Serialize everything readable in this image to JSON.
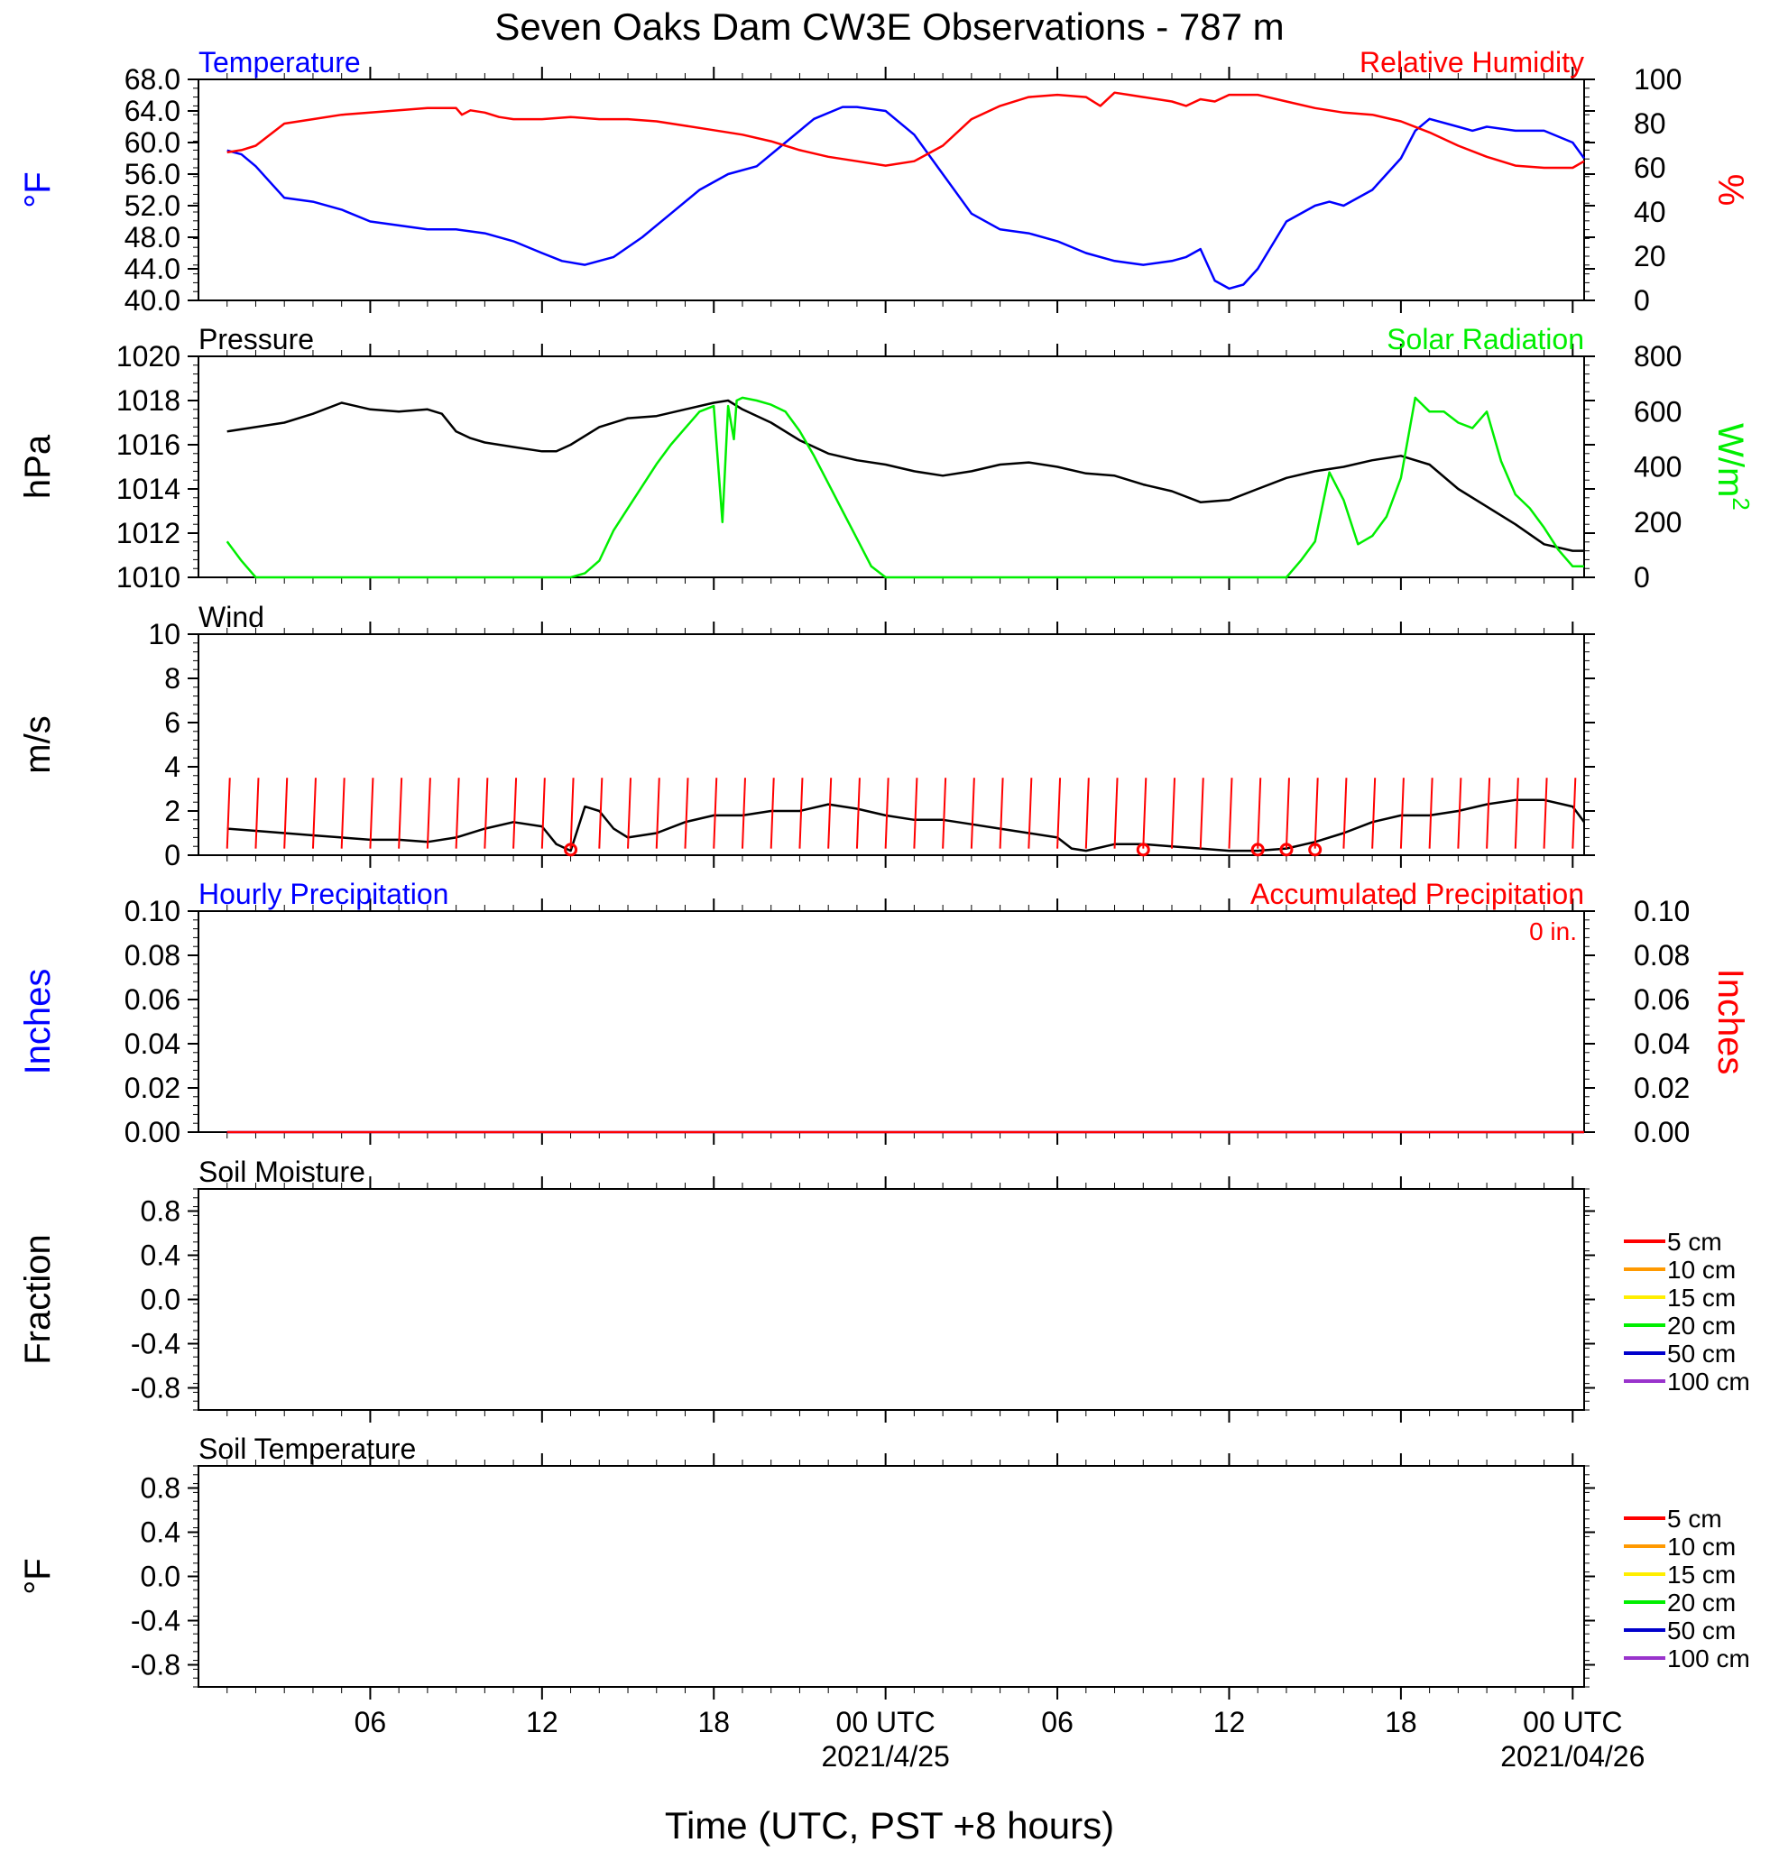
{
  "title": "Seven Oaks Dam CW3E Observations - 787 m",
  "xlabel": "Time (UTC, PST +8 hours)",
  "x_ticks": [
    {
      "t": 5,
      "label": "06",
      "date": ""
    },
    {
      "t": 11,
      "label": "12",
      "date": ""
    },
    {
      "t": 17,
      "label": "18",
      "date": ""
    },
    {
      "t": 23,
      "label": "00 UTC",
      "date": "2021/4/25"
    },
    {
      "t": 29,
      "label": "06",
      "date": ""
    },
    {
      "t": 35,
      "label": "12",
      "date": ""
    },
    {
      "t": 41,
      "label": "18",
      "date": ""
    },
    {
      "t": 47,
      "label": "00 UTC",
      "date": "2021/04/26"
    }
  ],
  "colors": {
    "blue": "#0000ff",
    "red": "#ff0000",
    "green": "#00ee00",
    "black": "#000000"
  },
  "chart_data": [
    {
      "type": "line",
      "left_title": "Temperature",
      "right_title": "Relative Humidity",
      "ylabel": "°F",
      "ylabel_right": "%",
      "ylim": [
        40,
        68
      ],
      "ylim_right": [
        0,
        100
      ],
      "yticks": [
        "40.0",
        "44.0",
        "48.0",
        "52.0",
        "56.0",
        "60.0",
        "64.0",
        "68.0"
      ],
      "yticks_right": [
        "0",
        "20",
        "40",
        "60",
        "80",
        "100"
      ],
      "series": [
        {
          "axis": "left",
          "color": "blue",
          "x": [
            0,
            0.5,
            1,
            1.5,
            2,
            3,
            4,
            5,
            6,
            7,
            8,
            9,
            10,
            11,
            11.7,
            12.5,
            13.5,
            14.5,
            15.5,
            16.5,
            17.5,
            18.5,
            19.5,
            20.5,
            21.5,
            22,
            23,
            24,
            25,
            26,
            27,
            28,
            29,
            30,
            31,
            32,
            33,
            33.5,
            34,
            34.5,
            35,
            35.5,
            36,
            37,
            38,
            38.5,
            39,
            40,
            41,
            41.5,
            42,
            43,
            43.5,
            44,
            45,
            46,
            47,
            47.4
          ],
          "y": [
            59,
            58.5,
            57,
            55,
            53,
            52.5,
            51.5,
            50,
            49.5,
            49,
            49,
            48.5,
            47.5,
            46,
            45,
            44.5,
            45.5,
            48,
            51,
            54,
            56,
            57,
            60,
            63,
            64.5,
            64.5,
            64,
            61,
            56,
            51,
            49,
            48.5,
            47.5,
            46,
            45,
            44.5,
            45,
            45.5,
            46.5,
            42.5,
            41.5,
            42,
            44,
            50,
            52,
            52.5,
            52,
            54,
            58,
            61.5,
            63,
            62,
            61.5,
            62,
            61.5,
            61.5,
            60,
            58
          ]
        },
        {
          "axis": "right",
          "color": "red",
          "x": [
            0,
            0.5,
            1,
            1.5,
            2,
            3,
            4,
            5,
            6,
            7,
            8,
            8.2,
            8.5,
            9,
            9.5,
            10,
            11,
            12,
            13,
            14,
            15,
            16,
            17,
            18,
            19,
            20,
            21,
            22,
            23,
            24,
            25,
            26,
            27,
            28,
            29,
            30,
            30.5,
            31,
            31.5,
            32,
            33,
            33.5,
            34,
            34.5,
            35,
            36,
            37,
            38,
            39,
            40,
            41,
            42,
            43,
            44,
            45,
            46,
            47,
            47.4
          ],
          "y": [
            67,
            68,
            70,
            75,
            80,
            82,
            84,
            85,
            86,
            87,
            87,
            84,
            86,
            85,
            83,
            82,
            82,
            83,
            82,
            82,
            81,
            79,
            77,
            75,
            72,
            68,
            65,
            63,
            61,
            63,
            70,
            82,
            88,
            92,
            93,
            92,
            88,
            94,
            93,
            92,
            90,
            88,
            91,
            90,
            93,
            93,
            90,
            87,
            85,
            84,
            81,
            76,
            70,
            65,
            61,
            60,
            60,
            63
          ]
        }
      ]
    },
    {
      "type": "line",
      "left_title": "Pressure",
      "right_title": "Solar Radiation",
      "ylabel": "hPa",
      "ylabel_right": "W/m",
      "ylabel_right_sup": "2",
      "ylim": [
        1010,
        1020
      ],
      "ylim_right": [
        0,
        800
      ],
      "yticks": [
        "1010",
        "1012",
        "1014",
        "1016",
        "1018",
        "1020"
      ],
      "yticks_right": [
        "0",
        "200",
        "400",
        "600",
        "800"
      ],
      "series": [
        {
          "axis": "left",
          "color": "black",
          "x": [
            0,
            1,
            2,
            3,
            4,
            5,
            6,
            7,
            7.5,
            8,
            8.5,
            9,
            10,
            11,
            11.5,
            12,
            13,
            14,
            15,
            16,
            17,
            17.5,
            18,
            19,
            20,
            21,
            22,
            23,
            24,
            25,
            26,
            27,
            28,
            29,
            30,
            31,
            32,
            33,
            34,
            35,
            36,
            37,
            38,
            39,
            40,
            41,
            42,
            43,
            44,
            45,
            46,
            47,
            47.4
          ],
          "y": [
            1016.6,
            1016.8,
            1017,
            1017.4,
            1017.9,
            1017.6,
            1017.5,
            1017.6,
            1017.4,
            1016.6,
            1016.3,
            1016.1,
            1015.9,
            1015.7,
            1015.7,
            1016,
            1016.8,
            1017.2,
            1017.3,
            1017.6,
            1017.9,
            1018,
            1017.6,
            1017,
            1016.2,
            1015.6,
            1015.3,
            1015.1,
            1014.8,
            1014.6,
            1014.8,
            1015.1,
            1015.2,
            1015,
            1014.7,
            1014.6,
            1014.2,
            1013.9,
            1013.4,
            1013.5,
            1014,
            1014.5,
            1014.8,
            1015,
            1015.3,
            1015.5,
            1015.1,
            1014,
            1013.2,
            1012.4,
            1011.5,
            1011.2,
            1011.2
          ]
        },
        {
          "axis": "right",
          "color": "green",
          "x": [
            0,
            0.5,
            1,
            2,
            3,
            4,
            5,
            6,
            7,
            8,
            9,
            10,
            11,
            12,
            12.5,
            13,
            13.5,
            14,
            14.5,
            15,
            15.5,
            16,
            16.5,
            17,
            17.3,
            17.5,
            17.7,
            17.8,
            18,
            18.5,
            19,
            19.5,
            20,
            20.5,
            21,
            21.5,
            22,
            22.5,
            23,
            23.5,
            24,
            24.5,
            25,
            26,
            27,
            28,
            29,
            30,
            31,
            32,
            33,
            34,
            35,
            36,
            37,
            37.5,
            38,
            38.5,
            39,
            39.5,
            40,
            40.5,
            41,
            41.5,
            42,
            42.5,
            43,
            43.5,
            44,
            44.5,
            45,
            45.5,
            46,
            46.5,
            47,
            47.4
          ],
          "y": [
            130,
            60,
            0,
            0,
            0,
            0,
            0,
            0,
            0,
            0,
            0,
            0,
            0,
            0,
            15,
            60,
            170,
            250,
            330,
            410,
            480,
            540,
            600,
            620,
            200,
            620,
            500,
            640,
            650,
            640,
            625,
            600,
            530,
            440,
            340,
            240,
            140,
            40,
            0,
            0,
            0,
            0,
            0,
            0,
            0,
            0,
            0,
            0,
            0,
            0,
            0,
            0,
            0,
            0,
            0,
            60,
            130,
            380,
            280,
            120,
            150,
            220,
            360,
            650,
            600,
            600,
            560,
            540,
            600,
            420,
            300,
            250,
            180,
            100,
            40,
            40
          ]
        }
      ]
    },
    {
      "type": "line",
      "left_title": "Wind",
      "ylabel": "m/s",
      "ylim": [
        0,
        10
      ],
      "yticks": [
        "0",
        "2",
        "4",
        "6",
        "8",
        "10"
      ],
      "series": [
        {
          "color": "black",
          "x": [
            0,
            1,
            2,
            3,
            4,
            5,
            6,
            7,
            8,
            9,
            10,
            11,
            11.5,
            12,
            12.5,
            13,
            13.5,
            14,
            15,
            16,
            17,
            18,
            19,
            20,
            21,
            22,
            23,
            24,
            25,
            26,
            27,
            28,
            29,
            29.5,
            30,
            31,
            32,
            33,
            34,
            35,
            36,
            37,
            38,
            39,
            40,
            41,
            42,
            43,
            44,
            45,
            46,
            47,
            47.4
          ],
          "y": [
            1.2,
            1.1,
            1,
            0.9,
            0.8,
            0.7,
            0.7,
            0.6,
            0.8,
            1.2,
            1.5,
            1.3,
            0.5,
            0.2,
            2.2,
            2,
            1.2,
            0.8,
            1,
            1.5,
            1.8,
            1.8,
            2,
            2,
            2.3,
            2.1,
            1.8,
            1.6,
            1.6,
            1.4,
            1.2,
            1,
            0.8,
            0.3,
            0.2,
            0.5,
            0.5,
            0.4,
            0.3,
            0.2,
            0.2,
            0.3,
            0.6,
            1,
            1.5,
            1.8,
            1.8,
            2,
            2.3,
            2.5,
            2.5,
            2.2,
            1.5
          ]
        }
      ],
      "barbs_x": [
        0,
        1,
        2,
        3,
        4,
        5,
        6,
        7,
        8,
        9,
        10,
        11,
        12,
        13,
        14,
        15,
        16,
        17,
        18,
        19,
        20,
        21,
        22,
        23,
        24,
        25,
        26,
        27,
        28,
        29,
        30,
        31,
        32,
        33,
        34,
        35,
        36,
        37,
        38,
        39,
        40,
        41,
        42,
        43,
        44,
        45,
        46,
        47
      ],
      "calm_x": [
        12,
        32,
        36,
        37,
        38
      ]
    },
    {
      "type": "line",
      "left_title": "Hourly Precipitation",
      "right_title": "Accumulated Precipitation",
      "annotation": "0 in.",
      "ylabel": "Inches",
      "ylabel_right": "Inches",
      "ylim": [
        0,
        0.1
      ],
      "yticks": [
        "0.00",
        "0.02",
        "0.04",
        "0.06",
        "0.08",
        "0.10"
      ],
      "yticks_right": [
        "0.00",
        "0.02",
        "0.04",
        "0.06",
        "0.08",
        "0.10"
      ],
      "series": [
        {
          "axis": "left",
          "color": "blue",
          "x": [
            0,
            47.4
          ],
          "y": [
            0,
            0
          ]
        },
        {
          "axis": "right",
          "color": "red",
          "x": [
            0,
            47.4
          ],
          "y": [
            0,
            0
          ]
        }
      ]
    },
    {
      "type": "line",
      "left_title": "Soil Moisture",
      "ylabel": "Fraction",
      "ylim": [
        -1,
        1
      ],
      "yticks": [
        "-0.8",
        "-0.4",
        "0.0",
        "0.4",
        "0.8"
      ],
      "legend": [
        {
          "name": "5 cm",
          "color": "#ff0000"
        },
        {
          "name": "10 cm",
          "color": "#ff9900"
        },
        {
          "name": "15 cm",
          "color": "#ffee00"
        },
        {
          "name": "20 cm",
          "color": "#00ee00"
        },
        {
          "name": "50 cm",
          "color": "#0000cc"
        },
        {
          "name": "100 cm",
          "color": "#9933cc"
        }
      ],
      "series": []
    },
    {
      "type": "line",
      "left_title": "Soil Temperature",
      "ylabel": "°F",
      "ylim": [
        -1,
        1
      ],
      "yticks": [
        "-0.8",
        "-0.4",
        "0.0",
        "0.4",
        "0.8"
      ],
      "legend": [
        {
          "name": "5 cm",
          "color": "#ff0000"
        },
        {
          "name": "10 cm",
          "color": "#ff9900"
        },
        {
          "name": "15 cm",
          "color": "#ffee00"
        },
        {
          "name": "20 cm",
          "color": "#00ee00"
        },
        {
          "name": "50 cm",
          "color": "#0000cc"
        },
        {
          "name": "100 cm",
          "color": "#9933cc"
        }
      ],
      "series": []
    }
  ]
}
